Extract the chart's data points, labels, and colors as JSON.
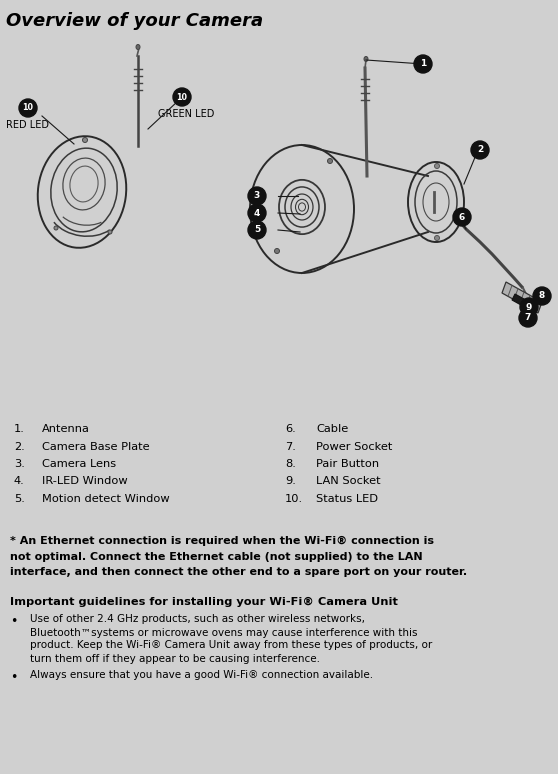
{
  "title": "Overview of your Camera",
  "bg_color": "#d0d0d0",
  "title_font_size": 13,
  "parts_left": [
    [
      "1.",
      "Antenna"
    ],
    [
      "2.",
      "Camera Base Plate"
    ],
    [
      "3.",
      "Camera Lens"
    ],
    [
      "4.",
      "IR-LED Window"
    ],
    [
      "5.",
      "Motion detect Window"
    ]
  ],
  "parts_right": [
    [
      "6.",
      "Cable"
    ],
    [
      "7.",
      "Power Socket"
    ],
    [
      "8.",
      "Pair Button"
    ],
    [
      "9.",
      "LAN Socket"
    ],
    [
      "10.",
      "Status LED"
    ]
  ],
  "note_bold": "* An Ethernet connection is required when the Wi-Fi® connection is not optimal. Connect the Ethernet cable (not supplied) to the LAN interface, and then connect the other end to a spare port on your router.",
  "guideline_title": "Important guidelines for installing your Wi-Fi® Camera Unit",
  "bullet1_lines": [
    "Use of other 2.4 GHz products, such as other wireless networks,",
    "Bluetooth™systems or microwave ovens may cause interference with this",
    "product. Keep the Wi-Fi® Camera Unit away from these types of products, or",
    "turn them off if they appear to be causing interference."
  ],
  "bullet2_lines": [
    "Always ensure that you have a good Wi-Fi® connection available."
  ]
}
